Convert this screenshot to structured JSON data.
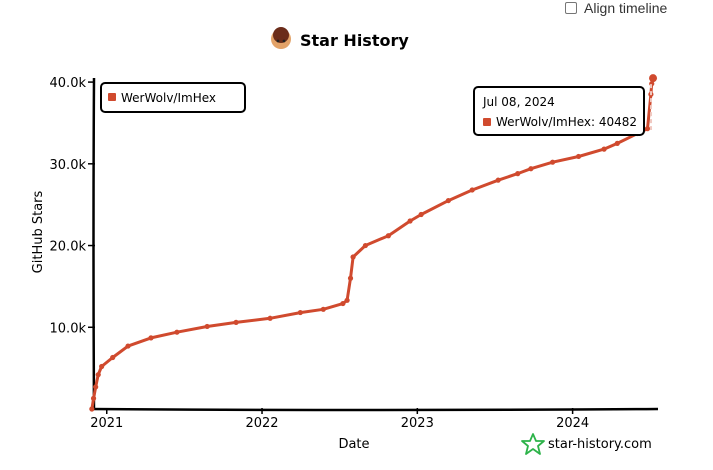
{
  "align_timeline": {
    "label": "Align timeline",
    "checked": false
  },
  "brand": {
    "text": "star-history.com",
    "icon": "star-icon"
  },
  "chart_data": {
    "type": "line",
    "title": "Star History",
    "xlabel": "Date",
    "ylabel": "GitHub Stars",
    "ylim": [
      0,
      40500
    ],
    "yticks": [
      {
        "value": 10000,
        "label": "10.0k"
      },
      {
        "value": 20000,
        "label": "20.0k"
      },
      {
        "value": 30000,
        "label": "30.0k"
      },
      {
        "value": 40000,
        "label": "40.0k"
      }
    ],
    "xlim": [
      "2020-11-25",
      "2024-07-15"
    ],
    "xticks": [
      {
        "value": "2021-01-01",
        "label": "2021"
      },
      {
        "value": "2022-01-01",
        "label": "2022"
      },
      {
        "value": "2023-01-01",
        "label": "2023"
      },
      {
        "value": "2024-01-01",
        "label": "2024"
      }
    ],
    "legend": {
      "position": "top-left"
    },
    "series": [
      {
        "name": "WerWolv/ImHex",
        "color": "#d04a2e",
        "points": [
          {
            "x": "2020-11-27",
            "y": 0
          },
          {
            "x": "2020-12-01",
            "y": 1300
          },
          {
            "x": "2020-12-06",
            "y": 2700
          },
          {
            "x": "2020-12-12",
            "y": 4200
          },
          {
            "x": "2020-12-20",
            "y": 5200
          },
          {
            "x": "2021-01-15",
            "y": 6300
          },
          {
            "x": "2021-02-20",
            "y": 7700
          },
          {
            "x": "2021-04-15",
            "y": 8700
          },
          {
            "x": "2021-06-15",
            "y": 9400
          },
          {
            "x": "2021-08-25",
            "y": 10100
          },
          {
            "x": "2021-11-01",
            "y": 10600
          },
          {
            "x": "2022-01-20",
            "y": 11100
          },
          {
            "x": "2022-04-01",
            "y": 11800
          },
          {
            "x": "2022-05-25",
            "y": 12200
          },
          {
            "x": "2022-07-10",
            "y": 12900
          },
          {
            "x": "2022-07-20",
            "y": 13300
          },
          {
            "x": "2022-07-28",
            "y": 16000
          },
          {
            "x": "2022-08-03",
            "y": 18600
          },
          {
            "x": "2022-09-01",
            "y": 20000
          },
          {
            "x": "2022-10-25",
            "y": 21200
          },
          {
            "x": "2022-12-15",
            "y": 23000
          },
          {
            "x": "2023-01-10",
            "y": 23800
          },
          {
            "x": "2023-03-15",
            "y": 25500
          },
          {
            "x": "2023-05-10",
            "y": 26800
          },
          {
            "x": "2023-07-10",
            "y": 28000
          },
          {
            "x": "2023-08-25",
            "y": 28800
          },
          {
            "x": "2023-09-25",
            "y": 29400
          },
          {
            "x": "2023-11-15",
            "y": 30200
          },
          {
            "x": "2024-01-15",
            "y": 30900
          },
          {
            "x": "2024-03-15",
            "y": 31800
          },
          {
            "x": "2024-04-15",
            "y": 32500
          },
          {
            "x": "2024-06-01",
            "y": 33700
          },
          {
            "x": "2024-06-25",
            "y": 34300
          },
          {
            "x": "2024-07-03",
            "y": 38500
          },
          {
            "x": "2024-07-05",
            "y": 39800
          },
          {
            "x": "2024-07-08",
            "y": 40482
          }
        ]
      }
    ],
    "tooltip": {
      "date": "Jul 08, 2024",
      "series": "WerWolv/ImHex",
      "value": "40482"
    }
  }
}
